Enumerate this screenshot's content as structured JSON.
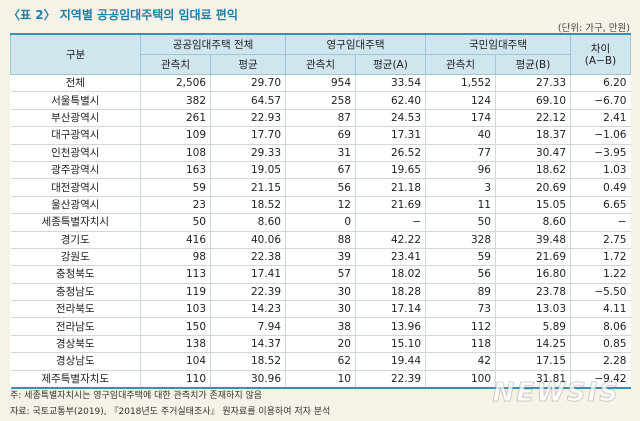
{
  "header": {
    "title": "〈표 2〉 지역별 공공임대주택의 임대료 편익",
    "unit": "(단위: 가구, 만원)"
  },
  "table": {
    "columns_top": [
      "구분",
      "공공임대주택 전체",
      "영구임대주택",
      "국민임대주택",
      "차이\n(A−B)"
    ],
    "columns_sub": [
      "관측치",
      "평균",
      "관측치",
      "평균(A)",
      "관측치",
      "평균(B)"
    ],
    "rows": [
      [
        "전체",
        "2,506",
        "29.70",
        "954",
        "33.54",
        "1,552",
        "27.33",
        "6.20"
      ],
      [
        "서울특별시",
        "382",
        "64.57",
        "258",
        "62.40",
        "124",
        "69.10",
        "−6.70"
      ],
      [
        "부산광역시",
        "261",
        "22.93",
        "87",
        "24.53",
        "174",
        "22.12",
        "2.41"
      ],
      [
        "대구광역시",
        "109",
        "17.70",
        "69",
        "17.31",
        "40",
        "18.37",
        "−1.06"
      ],
      [
        "인천광역시",
        "108",
        "29.33",
        "31",
        "26.52",
        "77",
        "30.47",
        "−3.95"
      ],
      [
        "광주광역시",
        "163",
        "19.05",
        "67",
        "19.65",
        "96",
        "18.62",
        "1.03"
      ],
      [
        "대전광역시",
        "59",
        "21.15",
        "56",
        "21.18",
        "3",
        "20.69",
        "0.49"
      ],
      [
        "울산광역시",
        "23",
        "18.52",
        "12",
        "21.69",
        "11",
        "15.05",
        "6.65"
      ],
      [
        "세종특별자치시",
        "50",
        "8.60",
        "0",
        "−",
        "50",
        "8.60",
        "−"
      ],
      [
        "경기도",
        "416",
        "40.06",
        "88",
        "42.22",
        "328",
        "39.48",
        "2.75"
      ],
      [
        "강원도",
        "98",
        "22.38",
        "39",
        "23.41",
        "59",
        "21.69",
        "1.72"
      ],
      [
        "충청북도",
        "113",
        "17.41",
        "57",
        "18.02",
        "56",
        "16.80",
        "1.22"
      ],
      [
        "충청남도",
        "119",
        "22.39",
        "30",
        "18.28",
        "89",
        "23.78",
        "−5.50"
      ],
      [
        "전라북도",
        "103",
        "14.23",
        "30",
        "17.14",
        "73",
        "13.03",
        "4.11"
      ],
      [
        "전라남도",
        "150",
        "7.94",
        "38",
        "13.96",
        "112",
        "5.89",
        "8.06"
      ],
      [
        "경상북도",
        "138",
        "14.37",
        "20",
        "15.10",
        "118",
        "14.25",
        "0.85"
      ],
      [
        "경상남도",
        "104",
        "18.52",
        "62",
        "19.44",
        "42",
        "17.15",
        "2.28"
      ],
      [
        "제주특별자치도",
        "110",
        "30.96",
        "10",
        "22.39",
        "100",
        "31.81",
        "−9.42"
      ]
    ]
  },
  "notes": [
    "주: 세종특별자치시는 영구임대주택에 대한 관측치가 존재하지 않음",
    "자료: 국토교통부(2019), 『2018년도 주거실태조사』 원자료를 이용하여 저자 분석"
  ],
  "watermark": "NEWSIS"
}
